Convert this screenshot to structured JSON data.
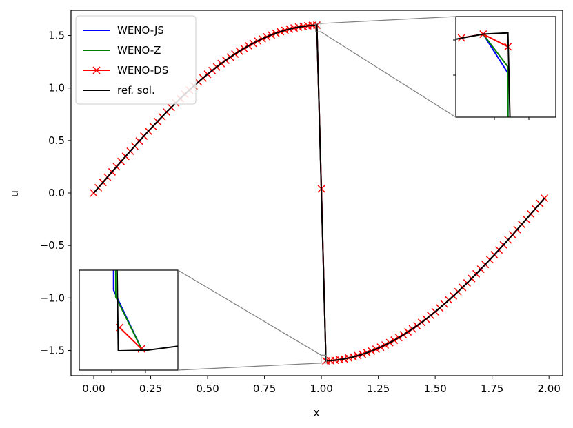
{
  "chart_data": {
    "type": "line",
    "xlabel": "x",
    "ylabel": "u",
    "xlim": [
      -0.1,
      2.06
    ],
    "ylim": [
      -1.74,
      1.74
    ],
    "xticks": [
      0.0,
      0.25,
      0.5,
      0.75,
      1.0,
      1.25,
      1.5,
      1.75,
      2.0
    ],
    "xtick_labels": [
      "0.00",
      "0.25",
      "0.50",
      "0.75",
      "1.00",
      "1.25",
      "1.50",
      "1.75",
      "2.00"
    ],
    "yticks": [
      -1.5,
      -1.0,
      -0.5,
      0.0,
      0.5,
      1.0,
      1.5
    ],
    "ytick_labels": [
      "−1.5",
      "−1.0",
      "−0.5",
      "0.0",
      "0.5",
      "1.0",
      "1.5"
    ],
    "legend_position": "upper-left",
    "series": [
      {
        "name": "WENO-JS",
        "color": "#0000ff",
        "marker": "none"
      },
      {
        "name": "WENO-Z",
        "color": "#008000",
        "marker": "none"
      },
      {
        "name": "WENO-DS",
        "color": "#ff0000",
        "marker": "x"
      },
      {
        "name": "ref. sol.",
        "color": "#000000",
        "marker": "none"
      }
    ],
    "shock": {
      "x_left": 0.98,
      "u_left": 1.6,
      "x_right": 1.02,
      "u_right": -1.6,
      "midpoint": [
        1.0,
        0.04
      ]
    },
    "grid": false,
    "insets": [
      {
        "name": "zoom-near-shock-top",
        "xlim": [
          0.975,
          0.998
        ],
        "ylim": [
          1.535,
          1.615
        ]
      },
      {
        "name": "zoom-near-shock-bottom",
        "xlim": [
          0.999,
          1.022
        ],
        "ylim": [
          -1.62,
          -1.545
        ]
      }
    ]
  }
}
